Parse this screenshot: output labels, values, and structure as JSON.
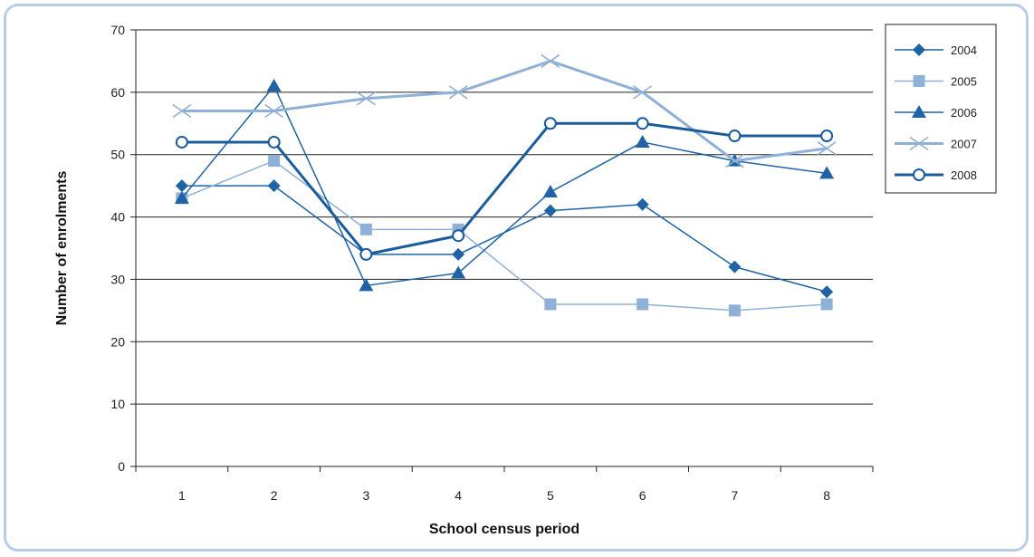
{
  "chart_data": {
    "type": "line",
    "title": "",
    "xlabel": "School census period",
    "ylabel": "Number of enrolments",
    "categories": [
      "1",
      "2",
      "3",
      "4",
      "5",
      "6",
      "7",
      "8"
    ],
    "ylim": [
      0,
      70
    ],
    "yticks": [
      0,
      10,
      20,
      30,
      40,
      50,
      60,
      70
    ],
    "grid": "horizontal",
    "legend_position": "right",
    "series": [
      {
        "name": "2004",
        "values": [
          45,
          45,
          34,
          34,
          41,
          42,
          32,
          28
        ],
        "color": "#1f63a4",
        "marker": "diamond",
        "width": 1.5
      },
      {
        "name": "2005",
        "values": [
          43,
          49,
          38,
          38,
          26,
          26,
          25,
          26
        ],
        "color": "#8fb0d7",
        "marker": "square",
        "width": 1.5
      },
      {
        "name": "2006",
        "values": [
          43,
          61,
          29,
          31,
          44,
          52,
          49,
          47
        ],
        "color": "#1f63a4",
        "marker": "triangle",
        "width": 1.5
      },
      {
        "name": "2007",
        "values": [
          57,
          57,
          59,
          60,
          65,
          60,
          49,
          51
        ],
        "color": "#8fb0d7",
        "marker": "x",
        "width": 3
      },
      {
        "name": "2008",
        "values": [
          52,
          52,
          34,
          37,
          55,
          55,
          53,
          53
        ],
        "color": "#1a5b9c",
        "marker": "circle",
        "width": 3
      }
    ]
  }
}
